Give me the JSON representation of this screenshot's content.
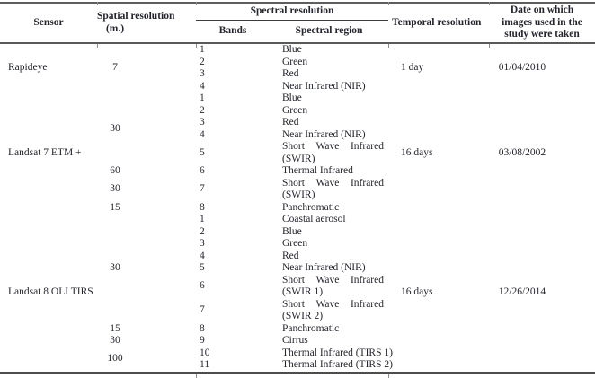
{
  "colors": {
    "text": "#24242e",
    "rule_dark": "#4d4d4d",
    "rule_mid": "#5e5e5e",
    "tick": "#8d8d8d"
  },
  "table": {
    "header": {
      "sensor": "Sensor",
      "spatial_lines": [
        "Spatial resolution",
        "(m.)"
      ],
      "spectral": "Spectral resolution",
      "bands": "Bands",
      "region": "Spectral region",
      "temporal": "Temporal resolution",
      "date_lines": [
        "Date on which",
        "images used in the",
        "study were taken"
      ]
    },
    "sections": [
      {
        "sensor": "Rapideye",
        "temporal": "1 day",
        "date": "01/04/2010",
        "spatial": [
          {
            "start": 0,
            "span": 4,
            "value": "7"
          }
        ],
        "bands": [
          {
            "num": "1",
            "region": "Blue"
          },
          {
            "num": "2",
            "region": "Green"
          },
          {
            "num": "3",
            "region": "Red"
          },
          {
            "num": "4",
            "region": "Near Infrared (NIR)"
          }
        ]
      },
      {
        "sensor": "Landsat 7 ETM +",
        "temporal": "16 days",
        "date": "03/08/2002",
        "spatial": [
          {
            "start": 0,
            "span": 5,
            "value": "30"
          },
          {
            "start": 5,
            "span": 1,
            "value": "60"
          },
          {
            "start": 6,
            "span": 1,
            "value": "30"
          },
          {
            "start": 7,
            "span": 1,
            "value": "15"
          }
        ],
        "bands": [
          {
            "num": "1",
            "region": "Blue"
          },
          {
            "num": "2",
            "region": "Green"
          },
          {
            "num": "3",
            "region": "Red"
          },
          {
            "num": "4",
            "region": "Near Infrared (NIR)"
          },
          {
            "num": "5",
            "region": "Short Wave Infrared (SWIR)",
            "justify": true
          },
          {
            "num": "6",
            "region": "Thermal Infrared"
          },
          {
            "num": "7",
            "region": "Short Wave Infrared (SWIR)",
            "justify": true
          },
          {
            "num": "8",
            "region": "Panchromatic"
          }
        ]
      },
      {
        "sensor": "Landsat 8 OLI TIRS",
        "temporal": "16 days",
        "date": "12/26/2014",
        "spatial": [
          {
            "start": 0,
            "span": 7,
            "value": "30"
          },
          {
            "start": 7,
            "span": 1,
            "value": "15"
          },
          {
            "start": 8,
            "span": 1,
            "value": "30"
          },
          {
            "start": 9,
            "span": 2,
            "value": "100"
          }
        ],
        "bands": [
          {
            "num": "1",
            "region": "Coastal aerosol"
          },
          {
            "num": "2",
            "region": "Blue"
          },
          {
            "num": "3",
            "region": "Green"
          },
          {
            "num": "4",
            "region": "Red"
          },
          {
            "num": "5",
            "region": "Near Infrared (NIR)"
          },
          {
            "num": "6",
            "region": "Short Wave Infrared (SWIR 1)",
            "justify": true
          },
          {
            "num": "7",
            "region": "Short Wave Infrared (SWIR 2)",
            "justify": true
          },
          {
            "num": "8",
            "region": "Panchromatic"
          },
          {
            "num": "9",
            "region": "Cirrus"
          },
          {
            "num": "10",
            "region": "Thermal Infrared (TIRS 1)"
          },
          {
            "num": "11",
            "region": "Thermal Infrared (TIRS 2)"
          }
        ]
      }
    ]
  }
}
